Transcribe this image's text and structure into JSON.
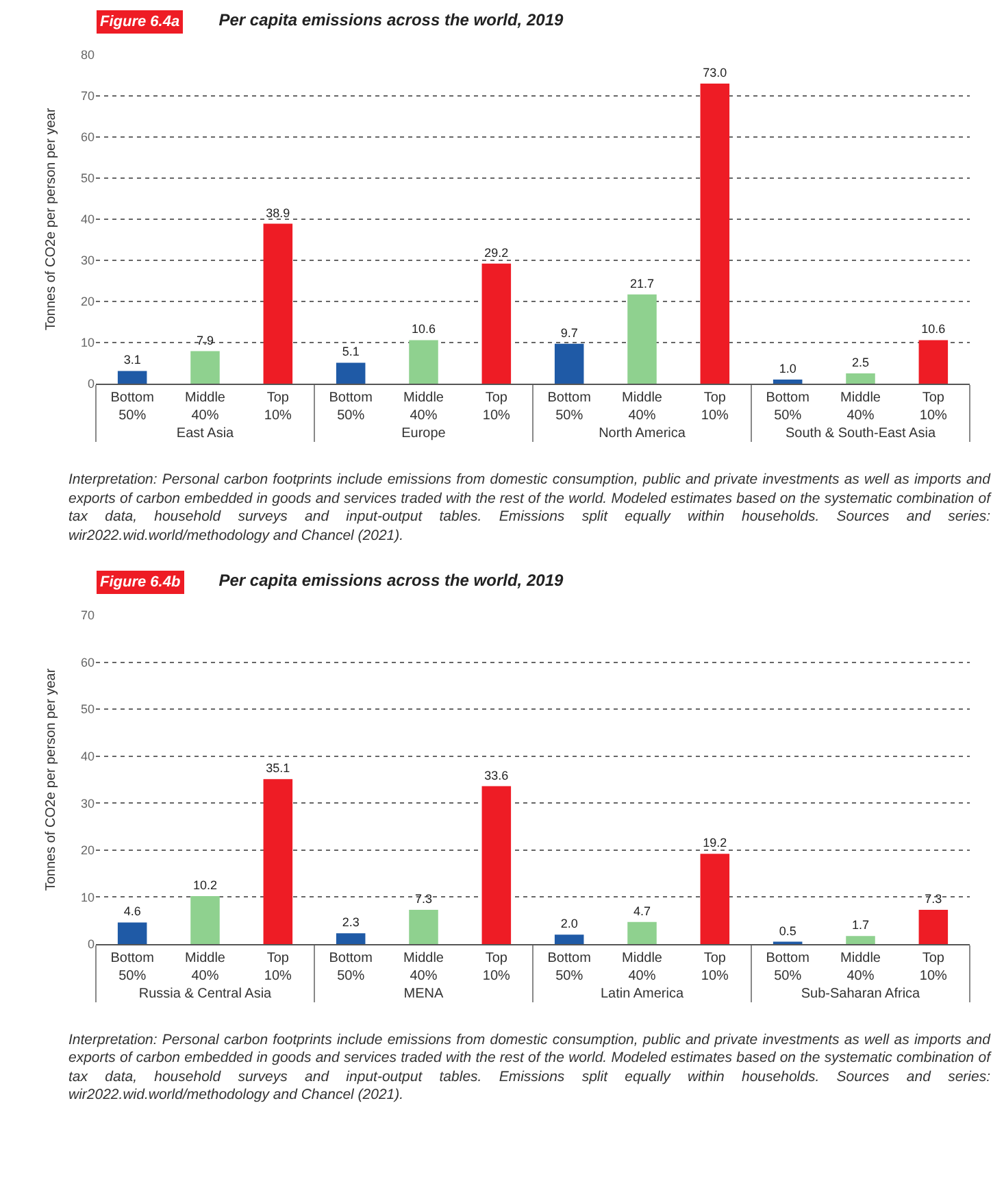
{
  "chart_data": [
    {
      "type": "bar",
      "title": "Per capita emissions across the world, 2019",
      "ylabel": "Tonnes of CO2e per person per year",
      "categories": [
        "East Asia",
        "Europe",
        "North America",
        "South & South-East Asia"
      ],
      "series": [
        {
          "name": "Bottom 50%",
          "color": "#1f5aa6",
          "values": [
            3.1,
            5.1,
            9.7,
            1.0
          ],
          "value_labels": [
            "3.1",
            "5.1",
            "9.7",
            "1.0"
          ]
        },
        {
          "name": "Middle 40%",
          "color": "#8fd18f",
          "values": [
            7.9,
            10.6,
            21.7,
            2.5
          ],
          "value_labels": [
            "7.9",
            "10.6",
            "21.7",
            "2.5"
          ]
        },
        {
          "name": "Top 10%",
          "color": "#ee1c25",
          "values": [
            38.9,
            29.2,
            73.0,
            10.6
          ],
          "value_labels": [
            "38.9",
            "29.2",
            "73.0",
            "10.6"
          ]
        }
      ],
      "ylim": [
        0,
        80
      ],
      "yticks": [
        0,
        10,
        20,
        30,
        40,
        50,
        60,
        70,
        80
      ],
      "grid": "y",
      "legend": false,
      "annotations": [
        "Figure 6.4a",
        "Interpretation: Personal carbon footprints include emissions from domestic consumption, public and private investments as well as imports and exports of carbon embedded in goods and services traded with the rest of the world. Modeled estimates based on the systematic combination of tax data, household surveys and input-output tables. Emissions split equally within households. Sources and series: wir2022.wid.world/methodology and Chancel (2021)."
      ]
    },
    {
      "type": "bar",
      "title": "Per capita emissions across the world, 2019",
      "ylabel": "Tonnes of CO2e per person per year",
      "categories": [
        "Russia & Central Asia",
        "MENA",
        "Latin America",
        "Sub-Saharan Africa"
      ],
      "series": [
        {
          "name": "Bottom 50%",
          "color": "#1f5aa6",
          "values": [
            4.6,
            2.3,
            2.0,
            0.5
          ],
          "value_labels": [
            "4.6",
            "2.3",
            "2.0",
            "0.5"
          ]
        },
        {
          "name": "Middle 40%",
          "color": "#8fd18f",
          "values": [
            10.2,
            7.3,
            4.7,
            1.7
          ],
          "value_labels": [
            "10.2",
            "7.3",
            "4.7",
            "1.7"
          ]
        },
        {
          "name": "Top 10%",
          "color": "#ee1c25",
          "values": [
            35.1,
            33.6,
            19.2,
            7.3
          ],
          "value_labels": [
            "35.1",
            "33.6",
            "19.2",
            "7.3"
          ]
        }
      ],
      "ylim": [
        0,
        70
      ],
      "yticks": [
        0,
        10,
        20,
        30,
        40,
        50,
        60,
        70
      ],
      "grid": "y",
      "legend": false,
      "annotations": [
        "Figure 6.4b",
        "Interpretation: Personal carbon footprints include emissions from domestic consumption, public and private investments as well as imports and exports of carbon embedded in goods and services traded with the rest of the world. Modeled estimates based on the systematic combination of tax data, household surveys and input-output tables. Emissions split equally within households. Sources and series: wir2022.wid.world/methodology and Chancel (2021)."
      ]
    }
  ]
}
